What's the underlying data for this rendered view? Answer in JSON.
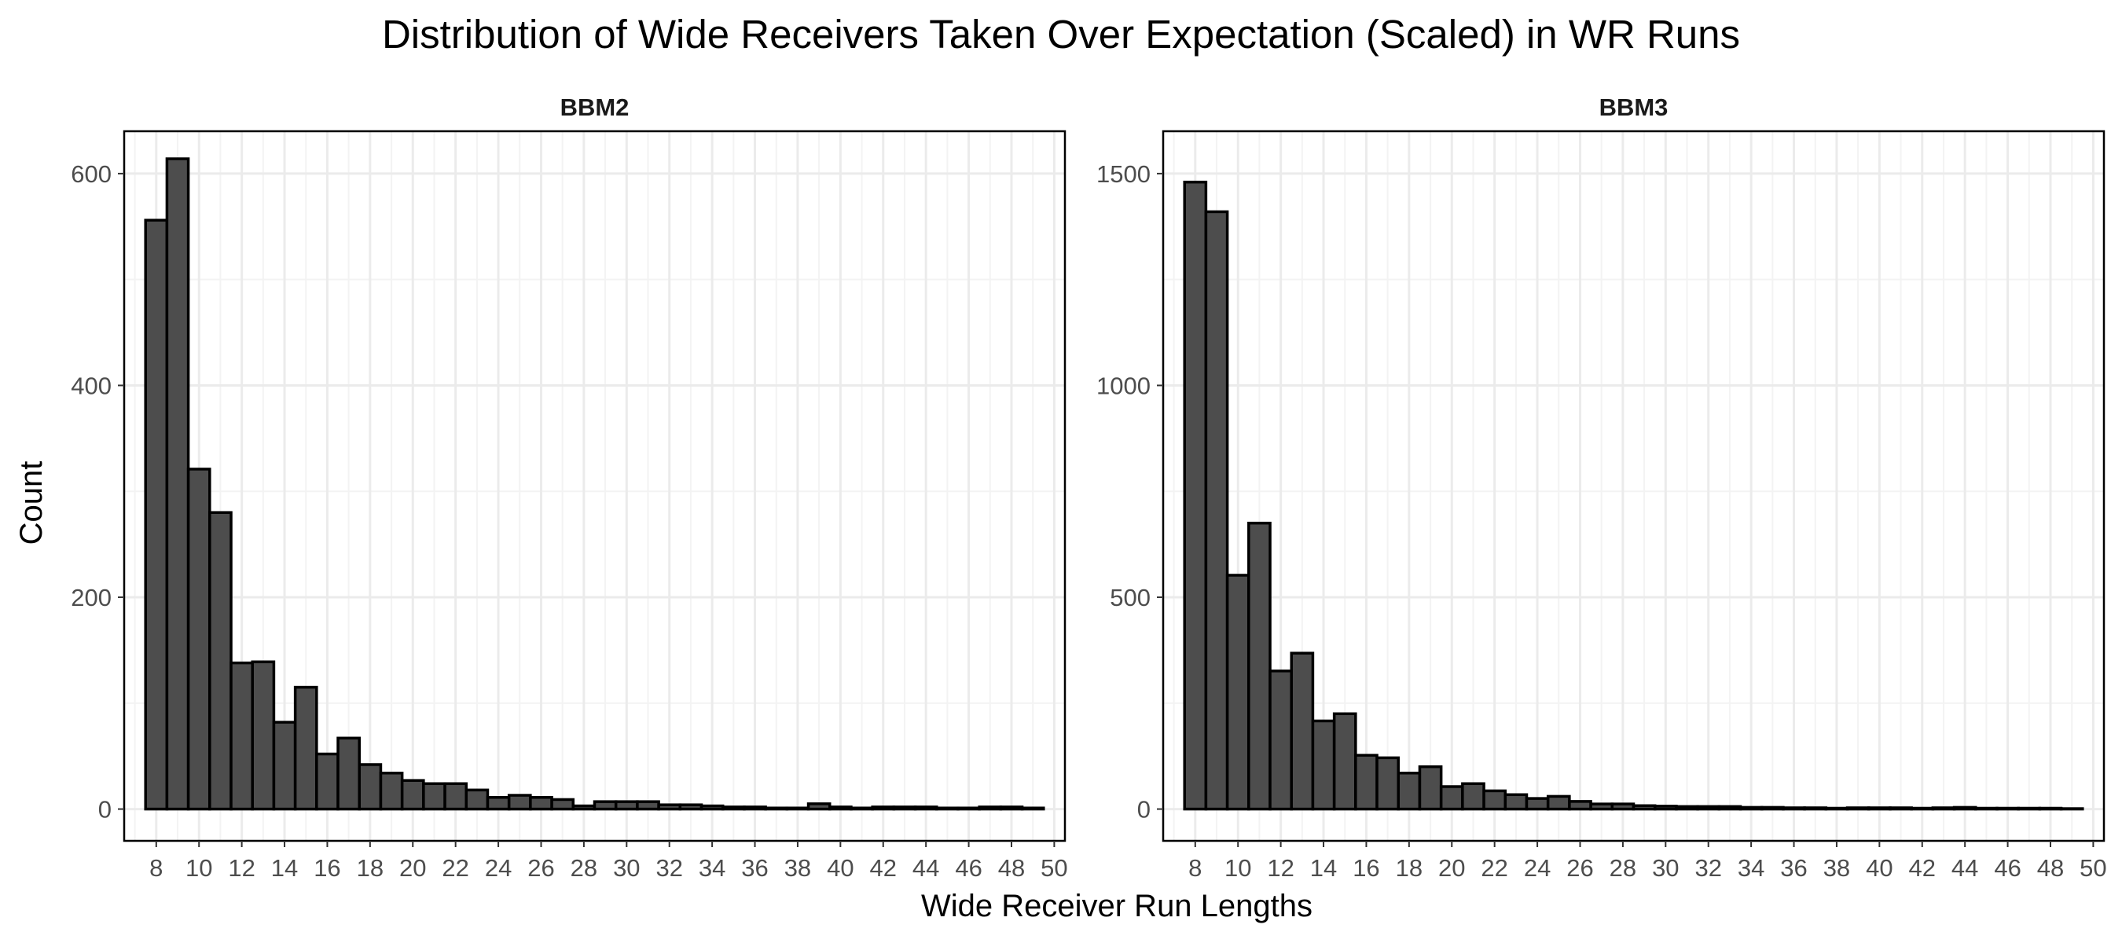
{
  "chart_data": {
    "type": "bar",
    "title": "Distribution of Wide Receivers Taken Over Expectation (Scaled) in WR Runs",
    "xlabel": "Wide Receiver Run Lengths",
    "ylabel": "Count",
    "x_ticks": [
      8,
      10,
      12,
      14,
      16,
      18,
      20,
      22,
      24,
      26,
      28,
      30,
      32,
      34,
      36,
      38,
      40,
      42,
      44,
      46,
      48,
      50
    ],
    "xlim": [
      6.5,
      50.5
    ],
    "bin_width": 1,
    "bar_fill": "#4d4d4d",
    "bar_stroke": "#000000",
    "grid": true,
    "panels": [
      {
        "name": "BBM2",
        "ylim": [
          -30,
          640
        ],
        "y_ticks": [
          0,
          200,
          400,
          600
        ],
        "bins_start": 7.5,
        "values": [
          556,
          614,
          321,
          280,
          138,
          139,
          82,
          115,
          52,
          67,
          42,
          34,
          27,
          24,
          24,
          18,
          11,
          13,
          11,
          9,
          3,
          7,
          7,
          7,
          4,
          4,
          3,
          2,
          2,
          1,
          1,
          5,
          2,
          1,
          2,
          2,
          2,
          1,
          1,
          2,
          2,
          1
        ]
      },
      {
        "name": "BBM3",
        "ylim": [
          -75,
          1600
        ],
        "y_ticks": [
          0,
          500,
          1000,
          1500
        ],
        "bins_start": 7.5,
        "values": [
          1480,
          1410,
          552,
          675,
          326,
          368,
          208,
          225,
          127,
          121,
          85,
          100,
          53,
          60,
          43,
          34,
          25,
          30,
          18,
          12,
          12,
          8,
          7,
          6,
          6,
          6,
          4,
          4,
          3,
          3,
          2,
          3,
          3,
          3,
          2,
          3,
          4,
          2,
          2,
          2,
          2,
          1
        ]
      }
    ]
  }
}
